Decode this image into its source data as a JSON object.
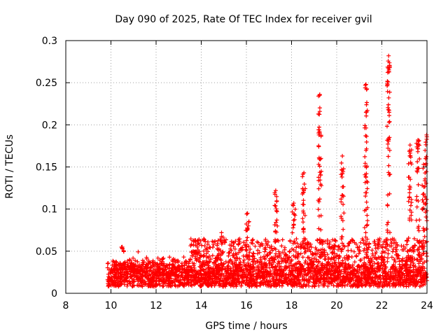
{
  "chart_data": {
    "type": "scatter",
    "title": "Day 090 of 2025, Rate Of TEC Index for receiver gvil",
    "xlabel": "GPS time / hours",
    "ylabel": "ROTI / TECUs",
    "xlim": [
      8,
      24
    ],
    "ylim": [
      0,
      0.3
    ],
    "xticks": [
      "8",
      "10",
      "12",
      "14",
      "16",
      "18",
      "20",
      "22",
      "24"
    ],
    "yticks": [
      "0",
      "0.05",
      "0.1",
      "0.15",
      "0.2",
      "0.25",
      "0.3"
    ],
    "xtick_values": [
      8,
      10,
      12,
      14,
      16,
      18,
      20,
      22,
      24
    ],
    "ytick_values": [
      0,
      0.05,
      0.1,
      0.15,
      0.2,
      0.25,
      0.3
    ],
    "grid": true,
    "marker": "+",
    "color": "#ff0000",
    "baseline_band": {
      "x_start": 9.85,
      "x_end": 24,
      "typical_min": 0.008,
      "typical_max": 0.045
    },
    "spike_clusters": [
      {
        "x": 10.5,
        "max": 0.055
      },
      {
        "x": 13.9,
        "max": 0.064
      },
      {
        "x": 14.9,
        "max": 0.072
      },
      {
        "x": 16.05,
        "max": 0.095
      },
      {
        "x": 17.3,
        "max": 0.122
      },
      {
        "x": 18.1,
        "max": 0.107
      },
      {
        "x": 18.55,
        "max": 0.143
      },
      {
        "x": 19.25,
        "max": 0.236
      },
      {
        "x": 20.25,
        "max": 0.163
      },
      {
        "x": 21.3,
        "max": 0.248
      },
      {
        "x": 22.3,
        "max": 0.282
      },
      {
        "x": 23.25,
        "max": 0.176
      },
      {
        "x": 23.6,
        "max": 0.182
      },
      {
        "x": 23.85,
        "max": 0.153
      },
      {
        "x": 23.98,
        "max": 0.188
      }
    ]
  }
}
